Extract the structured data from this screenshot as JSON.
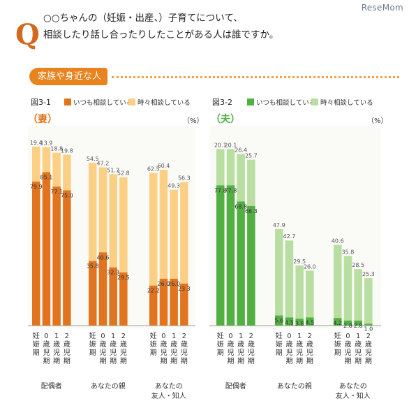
{
  "watermark": "ReseMom",
  "question": {
    "mark": "Q",
    "line1": "○○ちゃんの（妊娠・出産、）子育てについて、",
    "line2": "相談したり話し合ったりしたことがある人は誰ですか。"
  },
  "section_label": "家族や身近な人",
  "colors": {
    "wife_dark": "#e2741f",
    "wife_light": "#fbd084",
    "husband_dark": "#52b043",
    "husband_light": "#b9dea1",
    "accent": "#e8831e"
  },
  "chart_data": [
    {
      "type": "bar",
      "figure": "図3-1",
      "subject": "（妻）",
      "unit": "（%）",
      "stacked": false,
      "legend": [
        "いつも相談している",
        "時々相談している"
      ],
      "groups": [
        "配偶者",
        "あなたの親",
        "あなたの\n友人・知人"
      ],
      "categories": [
        "妊娠期",
        "0歳児期",
        "1歳児期",
        "2歳児期"
      ],
      "series": [
        {
          "name": "いつも相談している",
          "values": [
            [
              79.9,
              85.1,
              77.1,
              75.0
            ],
            [
              35.8,
              40.6,
              32.3,
              29.5
            ],
            [
              22.2,
              26.0,
              26.0,
              23.3
            ]
          ]
        },
        {
          "name": "時々相談している",
          "values": [
            [
              19.4,
              13.9,
              18.8,
              19.8
            ],
            [
              54.5,
              47.2,
              51.7,
              52.8
            ],
            [
              62.5,
              60.4,
              49.3,
              56.3
            ]
          ]
        }
      ]
    },
    {
      "type": "bar",
      "figure": "図3-2",
      "subject": "（夫）",
      "unit": "（%）",
      "stacked": false,
      "legend": [
        "いつも相談している",
        "時々相談している"
      ],
      "groups": [
        "配偶者",
        "あなたの親",
        "あなたの\n友人・知人"
      ],
      "categories": [
        "妊娠期",
        "0歳児期",
        "1歳児期",
        "2歳児期"
      ],
      "series": [
        {
          "name": "いつも相談している",
          "values": [
            [
              77.8,
              77.8,
              68.8,
              66.3
            ],
            [
              5.6,
              4.5,
              3.8,
              4.5
            ],
            [
              4.2,
              2.8,
              2.8,
              1.0
            ]
          ]
        },
        {
          "name": "時々相談している",
          "values": [
            [
              20.1,
              20.1,
              26.4,
              25.7
            ],
            [
              47.9,
              42.7,
              29.5,
              26.0
            ],
            [
              40.6,
              35.8,
              28.5,
              25.3
            ]
          ]
        }
      ]
    }
  ]
}
